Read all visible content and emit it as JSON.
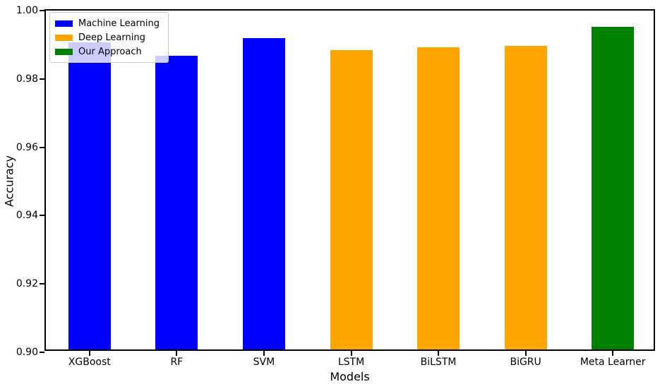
{
  "chart_data": {
    "type": "bar",
    "title": "",
    "xlabel": "Models",
    "ylabel": "Accuracy",
    "ylim": [
      0.9,
      1.0
    ],
    "yticks": [
      0.9,
      0.92,
      0.94,
      0.96,
      0.98,
      1.0
    ],
    "ytick_labels": [
      "0.90",
      "0.92",
      "0.94",
      "0.96",
      "0.98",
      "1.00"
    ],
    "categories": [
      "XGBoost",
      "RF",
      "SVM",
      "LSTM",
      "BiLSTM",
      "BiGRU",
      "Meta Learner"
    ],
    "values": [
      0.9898,
      0.986,
      0.9912,
      0.9876,
      0.9884,
      0.9888,
      0.9945
    ],
    "bar_colors": [
      "#0000ff",
      "#0000ff",
      "#0000ff",
      "#ffa500",
      "#ffa500",
      "#ffa500",
      "#008000"
    ],
    "series_of_bar": [
      "Machine Learning",
      "Machine Learning",
      "Machine Learning",
      "Deep Learning",
      "Deep Learning",
      "Deep Learning",
      "Our Approach"
    ],
    "legend": [
      {
        "label": "Machine Learning",
        "color": "#0000ff"
      },
      {
        "label": "Deep Learning",
        "color": "#ffa500"
      },
      {
        "label": "Our Approach",
        "color": "#008000"
      }
    ],
    "legend_position": "upper left",
    "grid": false,
    "axis_color": "#000000",
    "background_color": "#ffffff"
  }
}
